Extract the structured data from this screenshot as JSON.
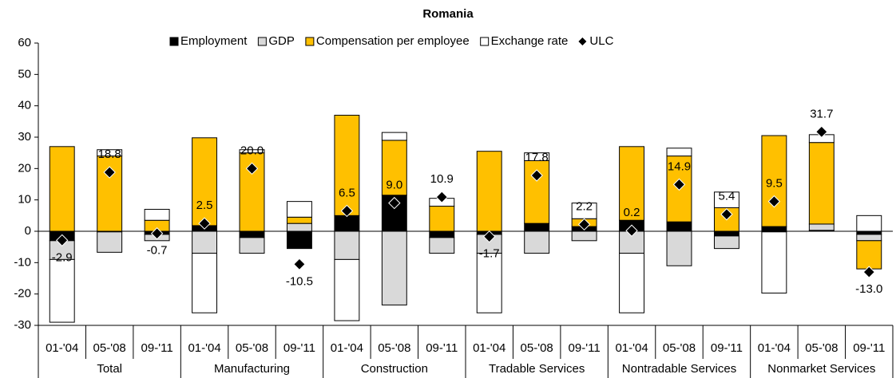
{
  "chart_data": {
    "type": "bar",
    "stacked": true,
    "title": "Romania",
    "categories": [
      "01-'04",
      "05-'08",
      "09-'11",
      "01-'04",
      "05-'08",
      "09-'11",
      "01-'04",
      "05-'08",
      "09-'11",
      "01-'04",
      "05-'08",
      "09-'11",
      "01-'04",
      "05-'08",
      "09-'11",
      "01-'04",
      "05-'08",
      "09-'11"
    ],
    "groups": [
      "Total",
      "Manufacturing",
      "Construction",
      "Tradable Services",
      "Nontradable Services",
      "Nonmarket Services"
    ],
    "series": [
      {
        "name": "Employment",
        "color": "#000000",
        "values": [
          -3,
          -0.2,
          -1,
          1.8,
          -2,
          -5.5,
          5,
          11.5,
          -2,
          -1,
          2.5,
          1.5,
          3.5,
          3,
          -1.5,
          1.5,
          0.3,
          -1
        ]
      },
      {
        "name": "GDP",
        "color": "#d9d9d9",
        "values": [
          -6,
          -6.5,
          -2,
          -7,
          -5,
          2.5,
          -9,
          -23.5,
          -5,
          -6,
          -7,
          -3,
          -7,
          -11,
          -4,
          -0.2,
          2,
          -2
        ]
      },
      {
        "name": "Compensation per employee",
        "color": "#ffc000",
        "values": [
          27,
          24,
          3.5,
          28,
          25,
          2,
          32,
          17.5,
          8,
          25.5,
          20,
          2.5,
          23.5,
          21,
          7.5,
          29,
          26,
          -9
        ]
      },
      {
        "name": "Exchange rate",
        "color": "#ffffff",
        "values": [
          -20,
          2,
          3.5,
          -19,
          1,
          5,
          -19.5,
          2.5,
          2.5,
          -19,
          2.5,
          5,
          -19,
          2.5,
          5,
          -19.5,
          2.5,
          5
        ]
      }
    ],
    "ulc": {
      "name": "ULC",
      "color": "#000000",
      "values": [
        -2.9,
        18.8,
        -0.7,
        2.5,
        20.0,
        -10.5,
        6.5,
        9.0,
        10.9,
        -1.7,
        17.8,
        2.2,
        0.2,
        14.9,
        5.4,
        9.5,
        31.7,
        -13.0
      ],
      "value_labels": [
        "-2.9",
        "18.8",
        "-0.7",
        "2.5",
        "20.0",
        "-10.5",
        "6.5",
        "9.0",
        "10.9",
        "-1.7",
        "17.8",
        "2.2",
        "0.2",
        "14.9",
        "5.4",
        "9.5",
        "31.7",
        "-13.0"
      ]
    },
    "ylim": [
      -30,
      60
    ],
    "yticks": [
      -30,
      -20,
      -10,
      0,
      10,
      20,
      30,
      40,
      50,
      60
    ],
    "grid": false,
    "legend": "top"
  }
}
